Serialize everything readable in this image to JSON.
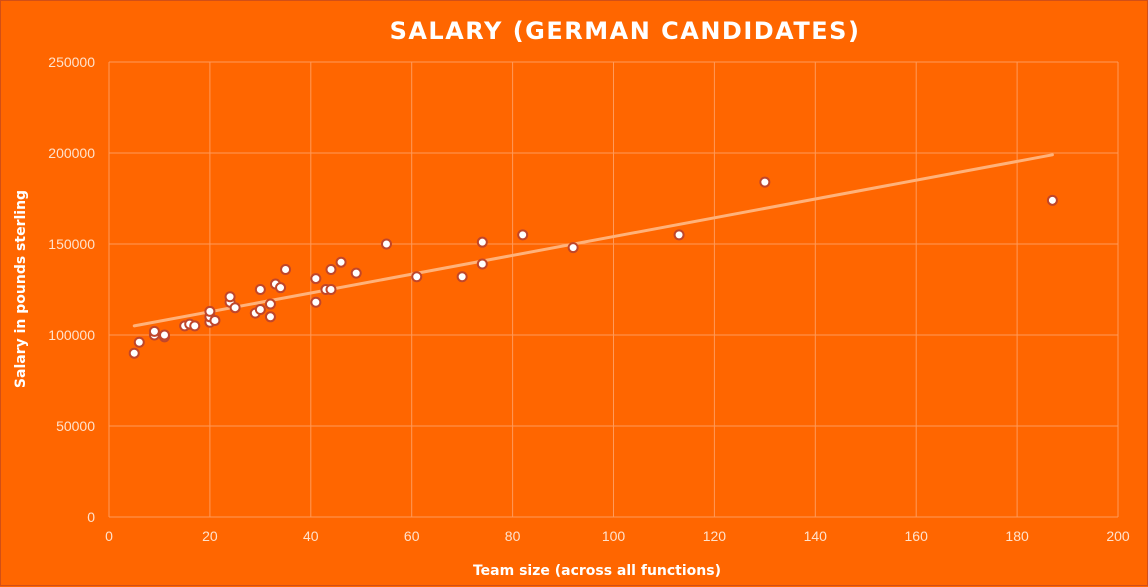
{
  "chart_data": {
    "type": "scatter",
    "title": "SALARY (GERMAN CANDIDATES)",
    "xlabel": "Team size  (across  all functions)",
    "ylabel": "Salary in pounds sterling",
    "xlim": [
      0,
      200
    ],
    "ylim": [
      0,
      250000
    ],
    "x_ticks": [
      "0",
      "20",
      "40",
      "60",
      "80",
      "100",
      "120",
      "140",
      "160",
      "180",
      "200"
    ],
    "y_ticks": [
      "0",
      "50000",
      "100000",
      "150000",
      "200000",
      "250000"
    ],
    "grid": true,
    "points": [
      {
        "x": 5,
        "y": 90000
      },
      {
        "x": 6,
        "y": 96000
      },
      {
        "x": 9,
        "y": 100000
      },
      {
        "x": 9,
        "y": 102000
      },
      {
        "x": 11,
        "y": 99000
      },
      {
        "x": 11,
        "y": 100000
      },
      {
        "x": 15,
        "y": 105000
      },
      {
        "x": 16,
        "y": 106000
      },
      {
        "x": 17,
        "y": 105000
      },
      {
        "x": 20,
        "y": 107000
      },
      {
        "x": 20,
        "y": 110000
      },
      {
        "x": 20,
        "y": 113000
      },
      {
        "x": 21,
        "y": 108000
      },
      {
        "x": 24,
        "y": 118000
      },
      {
        "x": 24,
        "y": 121000
      },
      {
        "x": 25,
        "y": 115000
      },
      {
        "x": 29,
        "y": 112000
      },
      {
        "x": 30,
        "y": 114000
      },
      {
        "x": 30,
        "y": 125000
      },
      {
        "x": 32,
        "y": 110000
      },
      {
        "x": 32,
        "y": 117000
      },
      {
        "x": 33,
        "y": 128000
      },
      {
        "x": 34,
        "y": 126000
      },
      {
        "x": 35,
        "y": 136000
      },
      {
        "x": 41,
        "y": 118000
      },
      {
        "x": 41,
        "y": 131000
      },
      {
        "x": 43,
        "y": 125000
      },
      {
        "x": 44,
        "y": 125000
      },
      {
        "x": 44,
        "y": 136000
      },
      {
        "x": 46,
        "y": 140000
      },
      {
        "x": 49,
        "y": 134000
      },
      {
        "x": 55,
        "y": 150000
      },
      {
        "x": 61,
        "y": 132000
      },
      {
        "x": 70,
        "y": 132000
      },
      {
        "x": 74,
        "y": 139000
      },
      {
        "x": 74,
        "y": 151000
      },
      {
        "x": 82,
        "y": 155000
      },
      {
        "x": 92,
        "y": 148000
      },
      {
        "x": 113,
        "y": 155000
      },
      {
        "x": 130,
        "y": 184000
      },
      {
        "x": 187,
        "y": 174000
      }
    ],
    "trendline": {
      "type": "linear",
      "x": [
        5,
        187
      ],
      "y": [
        105000,
        199000
      ]
    },
    "colors": {
      "background": "#ff6600",
      "grid": "#ff9a5a",
      "marker_fill": "#ffffff",
      "marker_stroke": "#c0462a",
      "trendline": "#ffb27a"
    }
  }
}
